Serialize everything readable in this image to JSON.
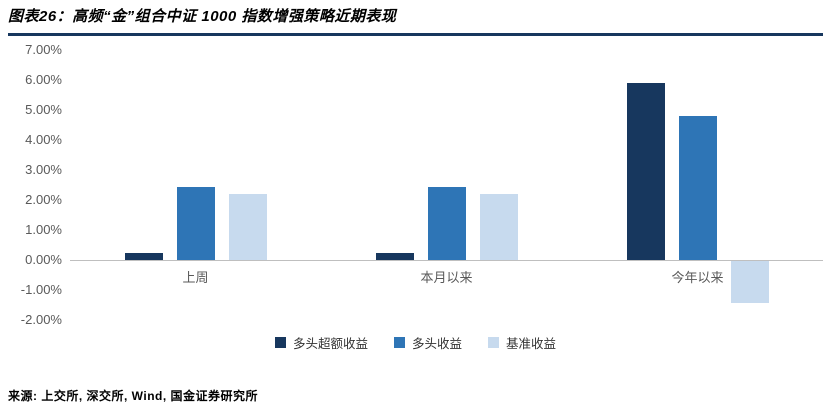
{
  "header": {
    "title": "图表26：高频“金”组合中证 1000 指数增强策略近期表现"
  },
  "footer": {
    "source": "来源: 上交所, 深交所, Wind, 国金证券研究所"
  },
  "colors": {
    "title_rule": "#17375E",
    "axis_text": "#595959",
    "zero_line": "#BFBFBF"
  },
  "chart_data": {
    "type": "bar",
    "title": "高频“金”组合中证 1000 指数增强策略近期表现",
    "categories": [
      "上周",
      "本月以来",
      "今年以来"
    ],
    "series": [
      {
        "name": "多头超额收益",
        "color": "#17375E",
        "values": [
          0.25,
          0.25,
          5.9
        ]
      },
      {
        "name": "多头收益",
        "color": "#2E75B6",
        "values": [
          2.45,
          2.45,
          4.8
        ]
      },
      {
        "name": "基准收益",
        "color": "#C7DAEE",
        "values": [
          2.2,
          2.2,
          -1.4
        ]
      }
    ],
    "xlabel": "",
    "ylabel": "",
    "ylim": [
      -2,
      7
    ],
    "ytick_step": 1,
    "ytick_format": "0.00%",
    "grid": false,
    "legend_position": "bottom"
  }
}
